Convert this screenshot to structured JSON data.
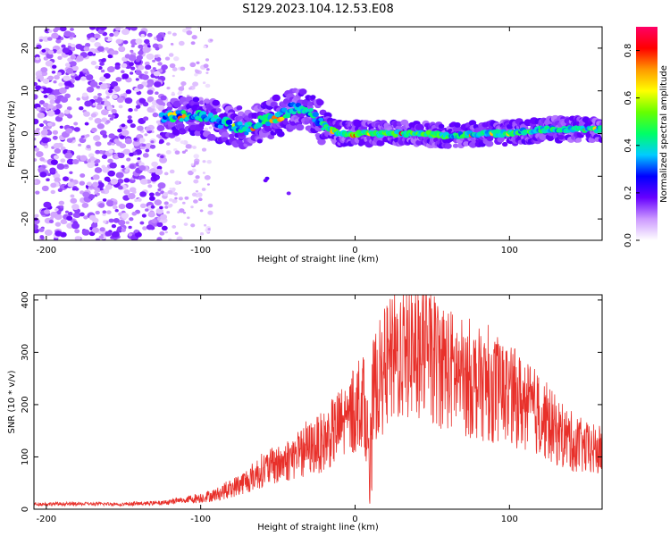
{
  "title": "S129.2023.104.12.53.E08",
  "colors": {
    "snr_line": "#e8302a",
    "axis": "#000000",
    "background": "#ffffff"
  },
  "chart_data": [
    {
      "type": "heatmap",
      "xlabel": "Height of straight line (km)",
      "ylabel": "Frequency (Hz)",
      "xlim": [
        -208,
        160
      ],
      "ylim": [
        -25,
        25
      ],
      "x_ticks": [
        -200,
        -100,
        0,
        100
      ],
      "y_ticks": [
        -20,
        -10,
        0,
        10,
        20
      ],
      "grid": false,
      "colorbar": {
        "label": "Normalized spectral amplitude",
        "range": [
          0.0,
          0.9
        ],
        "ticks": [
          "0.0",
          "0.2",
          "0.4",
          "0.6",
          "0.8"
        ],
        "colormap": [
          "#ffffff",
          "#cc99ff",
          "#6600ff",
          "#0000ff",
          "#00ccff",
          "#00ff66",
          "#66ff00",
          "#ffff00",
          "#ff9900",
          "#ff0000",
          "#ff0066"
        ]
      },
      "ridge": {
        "x": [
          -125,
          -110,
          -100,
          -90,
          -80,
          -70,
          -60,
          -50,
          -40,
          -30,
          -20,
          -10,
          0,
          20,
          40,
          60,
          80,
          100,
          120,
          140,
          160
        ],
        "frequency": [
          4,
          4,
          4,
          3,
          2,
          1,
          3,
          4,
          6,
          5,
          2,
          0,
          0,
          0,
          0,
          -0.5,
          0,
          0,
          1,
          1,
          1
        ]
      }
    },
    {
      "type": "line",
      "xlabel": "Height of straight line (km)",
      "ylabel": "SNR (10 * v/v)",
      "xlim": [
        -208,
        160
      ],
      "ylim": [
        0,
        410
      ],
      "x_ticks": [
        -200,
        -100,
        0,
        100
      ],
      "y_ticks": [
        0,
        100,
        200,
        300,
        400
      ],
      "grid": false,
      "series_envelope": {
        "x": [
          -208,
          -150,
          -125,
          -110,
          -100,
          -90,
          -80,
          -70,
          -60,
          -50,
          -40,
          -30,
          -20,
          -10,
          -2,
          0,
          5,
          9,
          10,
          12,
          20,
          30,
          40,
          50,
          60,
          70,
          80,
          100,
          120,
          130,
          140,
          150,
          160
        ],
        "y": [
          10,
          10,
          12,
          18,
          22,
          28,
          40,
          55,
          75,
          85,
          100,
          115,
          130,
          160,
          180,
          190,
          220,
          120,
          150,
          230,
          270,
          300,
          310,
          290,
          270,
          250,
          240,
          220,
          180,
          150,
          130,
          115,
          110
        ]
      }
    }
  ]
}
